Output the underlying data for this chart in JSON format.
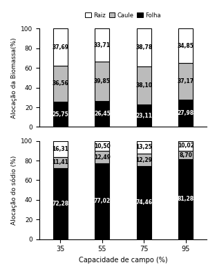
{
  "categories": [
    "35",
    "55",
    "75",
    "95"
  ],
  "biomassa": {
    "folha": [
      25.75,
      26.45,
      23.11,
      27.98
    ],
    "caule": [
      36.56,
      39.85,
      38.1,
      37.17
    ],
    "raiz": [
      37.69,
      33.71,
      38.78,
      34.85
    ]
  },
  "sodio": {
    "folha": [
      72.28,
      77.02,
      74.46,
      81.28
    ],
    "caule": [
      11.41,
      12.49,
      12.29,
      8.7
    ],
    "raiz": [
      16.31,
      10.5,
      13.25,
      10.02
    ]
  },
  "colors": {
    "folha": "#000000",
    "caule": "#bbbbbb",
    "raiz": "#ffffff"
  },
  "ylabel_top": "Alocação da Biomassa(%)",
  "ylabel_bottom": "Alocação do sódio (%)",
  "xlabel": "Capacidade de campo (%)",
  "legend_labels": [
    "Raiz",
    "Caule",
    "Folha"
  ],
  "ylim": [
    0,
    100
  ],
  "yticks": [
    0,
    20,
    40,
    60,
    80,
    100
  ],
  "bar_width": 0.35,
  "figsize": [
    3.14,
    3.96
  ],
  "dpi": 100
}
